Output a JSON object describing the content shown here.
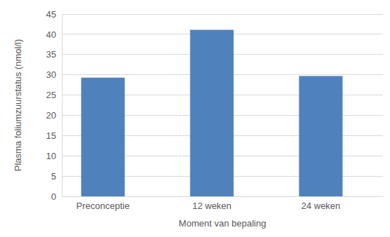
{
  "chart_data": {
    "type": "bar",
    "x_label": "Moment van bepaling",
    "y_label": "Plasma foliumzuurstatus (nmol/l)",
    "categories": [
      "Preconceptie",
      "12 weken",
      "24 weken"
    ],
    "values": [
      29.3,
      41.1,
      29.7
    ],
    "color": "#4f81bd",
    "ylim": [
      0,
      45
    ],
    "yticks": [
      0,
      5,
      10,
      15,
      20,
      25,
      30,
      35,
      40,
      45
    ],
    "grid": true
  }
}
